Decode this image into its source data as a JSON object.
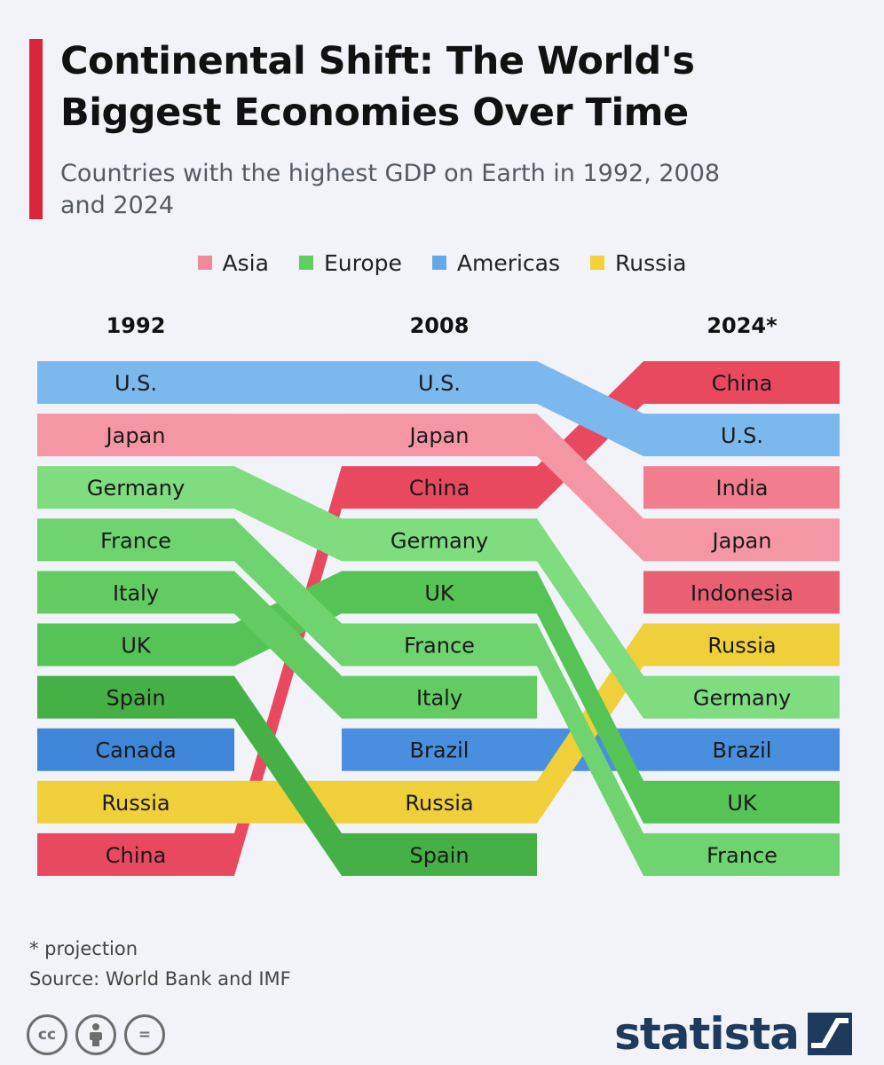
{
  "header": {
    "title": "Continental Shift: The World's Biggest Economies Over Time",
    "subtitle": "Countries with the highest GDP on Earth in 1992, 2008 and 2024"
  },
  "legend": [
    {
      "label": "Asia",
      "color": "#f08a99"
    },
    {
      "label": "Europe",
      "color": "#5fcf5f"
    },
    {
      "label": "Americas",
      "color": "#63a9e8"
    },
    {
      "label": "Russia",
      "color": "#f2d23a"
    }
  ],
  "chart_data": {
    "type": "bump",
    "years": [
      "1992",
      "2008",
      "2024*"
    ],
    "series": [
      {
        "name": "U.S.",
        "region": "Americas",
        "ranks": [
          1,
          1,
          2
        ],
        "color": "#7ab8ee"
      },
      {
        "name": "Japan",
        "region": "Asia",
        "ranks": [
          2,
          2,
          4
        ],
        "color": "#f596a4"
      },
      {
        "name": "Germany",
        "region": "Europe",
        "ranks": [
          3,
          4,
          7
        ],
        "color": "#7fdc7f"
      },
      {
        "name": "France",
        "region": "Europe",
        "ranks": [
          4,
          6,
          10
        ],
        "color": "#6fd46f"
      },
      {
        "name": "Italy",
        "region": "Europe",
        "ranks": [
          5,
          7,
          null
        ],
        "color": "#62cc62"
      },
      {
        "name": "UK",
        "region": "Europe",
        "ranks": [
          6,
          5,
          9
        ],
        "color": "#55c355"
      },
      {
        "name": "Spain",
        "region": "Europe",
        "ranks": [
          7,
          10,
          null
        ],
        "color": "#45b045"
      },
      {
        "name": "Canada",
        "region": "Americas",
        "ranks": [
          8,
          null,
          null
        ],
        "color": "#3f86d8"
      },
      {
        "name": "Russia",
        "region": "Russia",
        "ranks": [
          9,
          9,
          6
        ],
        "color": "#f0d03a"
      },
      {
        "name": "China",
        "region": "Asia",
        "ranks": [
          10,
          3,
          1
        ],
        "color": "#e8495f"
      },
      {
        "name": "India",
        "region": "Asia",
        "ranks": [
          null,
          null,
          3
        ],
        "color": "#f17d8e"
      },
      {
        "name": "Indonesia",
        "region": "Asia",
        "ranks": [
          null,
          null,
          5
        ],
        "color": "#ea6073"
      },
      {
        "name": "Brazil",
        "region": "Americas",
        "ranks": [
          null,
          8,
          8
        ],
        "color": "#4a8fdf"
      }
    ]
  },
  "footer": {
    "note": "* projection",
    "source": "Source: World Bank and IMF",
    "brand": "statista",
    "cc_icons": [
      "cc",
      "by",
      "="
    ]
  }
}
